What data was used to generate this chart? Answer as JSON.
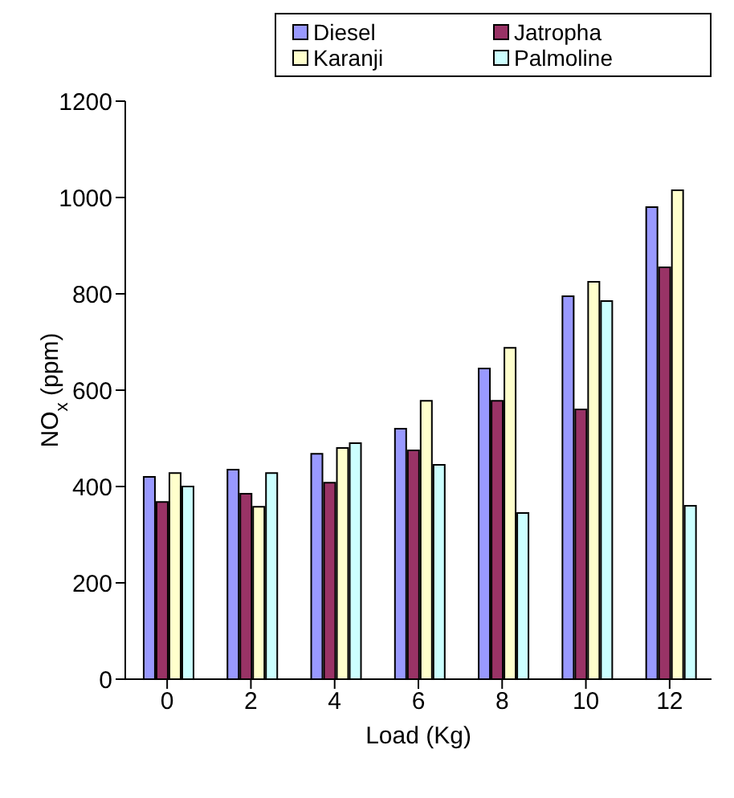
{
  "chart_data": {
    "type": "bar",
    "xlabel": "Load (Kg)",
    "ylabel": "NO$_{x}$ (ppm)",
    "categories": [
      "0",
      "2",
      "4",
      "6",
      "8",
      "10",
      "12"
    ],
    "series": [
      {
        "name": "Diesel",
        "color": "#9999ff",
        "values": [
          420,
          435,
          468,
          520,
          645,
          795,
          980
        ]
      },
      {
        "name": "Jatropha",
        "color": "#993366",
        "values": [
          368,
          385,
          408,
          475,
          578,
          560,
          855
        ]
      },
      {
        "name": "Karanji",
        "color": "#ffffcc",
        "values": [
          428,
          358,
          480,
          578,
          688,
          825,
          1015
        ]
      },
      {
        "name": "Palmoline",
        "color": "#ccffff",
        "values": [
          400,
          428,
          490,
          445,
          345,
          785,
          360
        ]
      }
    ],
    "ylim": [
      0,
      1200
    ],
    "yticks": [
      0,
      200,
      400,
      600,
      800,
      1000,
      1200
    ],
    "grid": false,
    "legend": "top right"
  }
}
